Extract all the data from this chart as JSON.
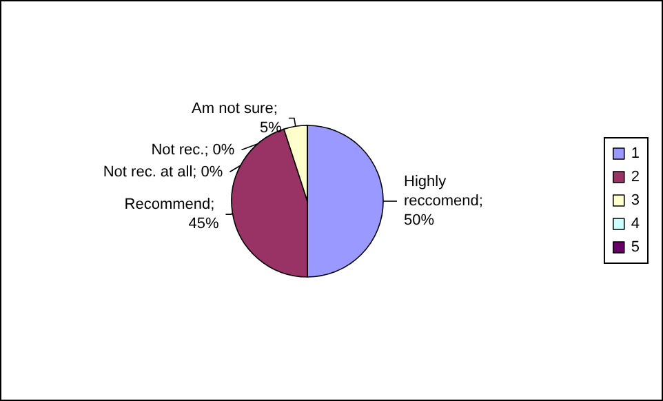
{
  "chart_data": {
    "type": "pie",
    "categories": [
      "1",
      "2",
      "3",
      "4",
      "5"
    ],
    "values": [
      50,
      45,
      5,
      0,
      0
    ],
    "colors": [
      "#9999ff",
      "#993366",
      "#ffffcc",
      "#ccffff",
      "#660066"
    ],
    "value_labels": [
      "Highly reccomend; 50%",
      "Recommend; 45%",
      "Am not sure; 5%",
      "Not rec.; 0%",
      "Not rec. at all; 0%"
    ],
    "legend": "right"
  }
}
